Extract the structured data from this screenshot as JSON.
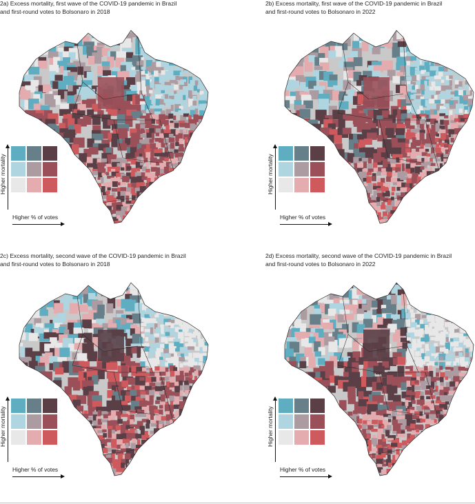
{
  "panels": [
    {
      "id": "2a",
      "title": "2a) Excess mortality, first wave of the COVID-19 pandemic in Brazil\nand first-round votes to Bolsonaro in 2018",
      "wave": "first",
      "year": 2018
    },
    {
      "id": "2b",
      "title": "2b) Excess mortality, first wave of the COVID-19 pandemic in Brazil\nand first-round votes to Bolsonaro in 2022",
      "wave": "first",
      "year": 2022
    },
    {
      "id": "2c",
      "title": "2c) Excess mortality, second wave of the COVID-19 pandemic in Brazil\nand first-round votes to Bolsonaro in 2018",
      "wave": "second",
      "year": 2018
    },
    {
      "id": "2d",
      "title": "2d) Excess mortality, second wave of the COVID-19 pandemic in Brazil\nand first-round votes to Bolsonaro in 2022",
      "wave": "second",
      "year": 2022
    }
  ],
  "legend": {
    "y_label": "Higher mortality",
    "x_label": "Higher % of votes",
    "grid": [
      [
        "#5eadc1",
        "#667f89",
        "#5a3f47"
      ],
      [
        "#afd5e0",
        "#ad9ba2",
        "#9b5059"
      ],
      [
        "#e8e8e8",
        "#e4acaf",
        "#cf5a5e"
      ]
    ]
  },
  "colors": {
    "north_low_vote_high_mort": "#5eadc1",
    "northeast": "#9cd0e0",
    "center_high_both": "#5a3f47",
    "south_high_vote": "#c25b63",
    "border": "#2a2a2a"
  }
}
